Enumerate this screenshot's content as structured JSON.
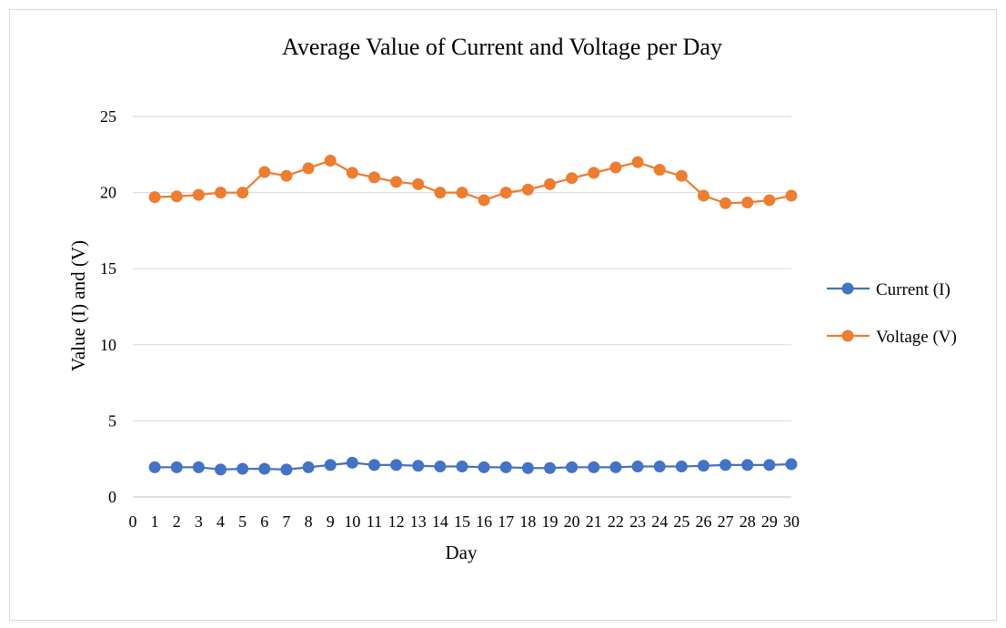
{
  "chart_data": {
    "type": "line",
    "title": "Average Value of Current and Voltage per Day",
    "xlabel": "Day",
    "ylabel": "Value  (I) and  (V)",
    "x": [
      1,
      2,
      3,
      4,
      5,
      6,
      7,
      8,
      9,
      10,
      11,
      12,
      13,
      14,
      15,
      16,
      17,
      18,
      19,
      20,
      21,
      22,
      23,
      24,
      25,
      26,
      27,
      28,
      29,
      30
    ],
    "xlim": [
      0,
      30
    ],
    "x_ticks": [
      0,
      1,
      2,
      3,
      4,
      5,
      6,
      7,
      8,
      9,
      10,
      11,
      12,
      13,
      14,
      15,
      16,
      17,
      18,
      19,
      20,
      21,
      22,
      23,
      24,
      25,
      26,
      27,
      28,
      29,
      30
    ],
    "ylim": [
      0,
      25
    ],
    "y_ticks": [
      0,
      5,
      10,
      15,
      20,
      25
    ],
    "grid": true,
    "legend_position": "right",
    "series": [
      {
        "name": "Current (I)",
        "color": "#4472C4",
        "values": [
          1.95,
          1.95,
          1.95,
          1.8,
          1.85,
          1.85,
          1.8,
          1.95,
          2.1,
          2.25,
          2.1,
          2.1,
          2.05,
          2.0,
          2.0,
          1.95,
          1.95,
          1.9,
          1.9,
          1.95,
          1.95,
          1.95,
          2.0,
          2.0,
          2.0,
          2.05,
          2.1,
          2.1,
          2.1,
          2.15
        ]
      },
      {
        "name": "Voltage (V)",
        "color": "#ED7D31",
        "values": [
          19.7,
          19.75,
          19.85,
          20.0,
          20.0,
          21.35,
          21.1,
          21.6,
          22.1,
          21.3,
          21.0,
          20.7,
          20.55,
          20.0,
          20.0,
          19.5,
          20.0,
          20.2,
          20.55,
          20.95,
          21.3,
          21.65,
          22.0,
          21.5,
          21.1,
          19.8,
          19.3,
          19.35,
          19.5,
          19.8
        ]
      }
    ]
  }
}
